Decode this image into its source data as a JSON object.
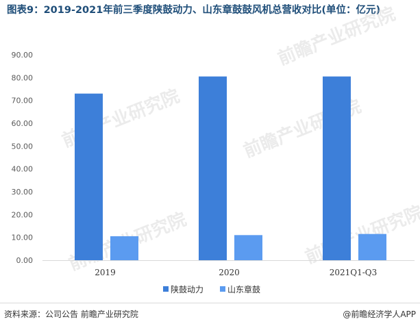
{
  "title": "图表9：2019-2021年前三季度陕鼓动力、山东章鼓鼓风机总营收对比(单位：亿元)",
  "source": "资料来源：公司公告 前瞻产业研究院",
  "brand": "@前瞻经济学人APP",
  "watermark": "前瞻产业研究院",
  "colors": {
    "series1": "#3d7fd9",
    "series2": "#5b9bf0",
    "title": "#1f4e79"
  },
  "chart_data": {
    "type": "bar",
    "categories": [
      "2019",
      "2020",
      "2021Q1-Q3"
    ],
    "series": [
      {
        "name": "陕鼓动力",
        "values": [
          73.0,
          80.5,
          80.5
        ]
      },
      {
        "name": "山东章鼓",
        "values": [
          10.5,
          11.0,
          11.5
        ]
      }
    ],
    "yticks": [
      "0.00",
      "10.00",
      "20.00",
      "30.00",
      "40.00",
      "50.00",
      "60.00",
      "70.00",
      "80.00",
      "90.00"
    ],
    "ylim": [
      0,
      90
    ],
    "grid": false,
    "legend_position": "bottom"
  }
}
